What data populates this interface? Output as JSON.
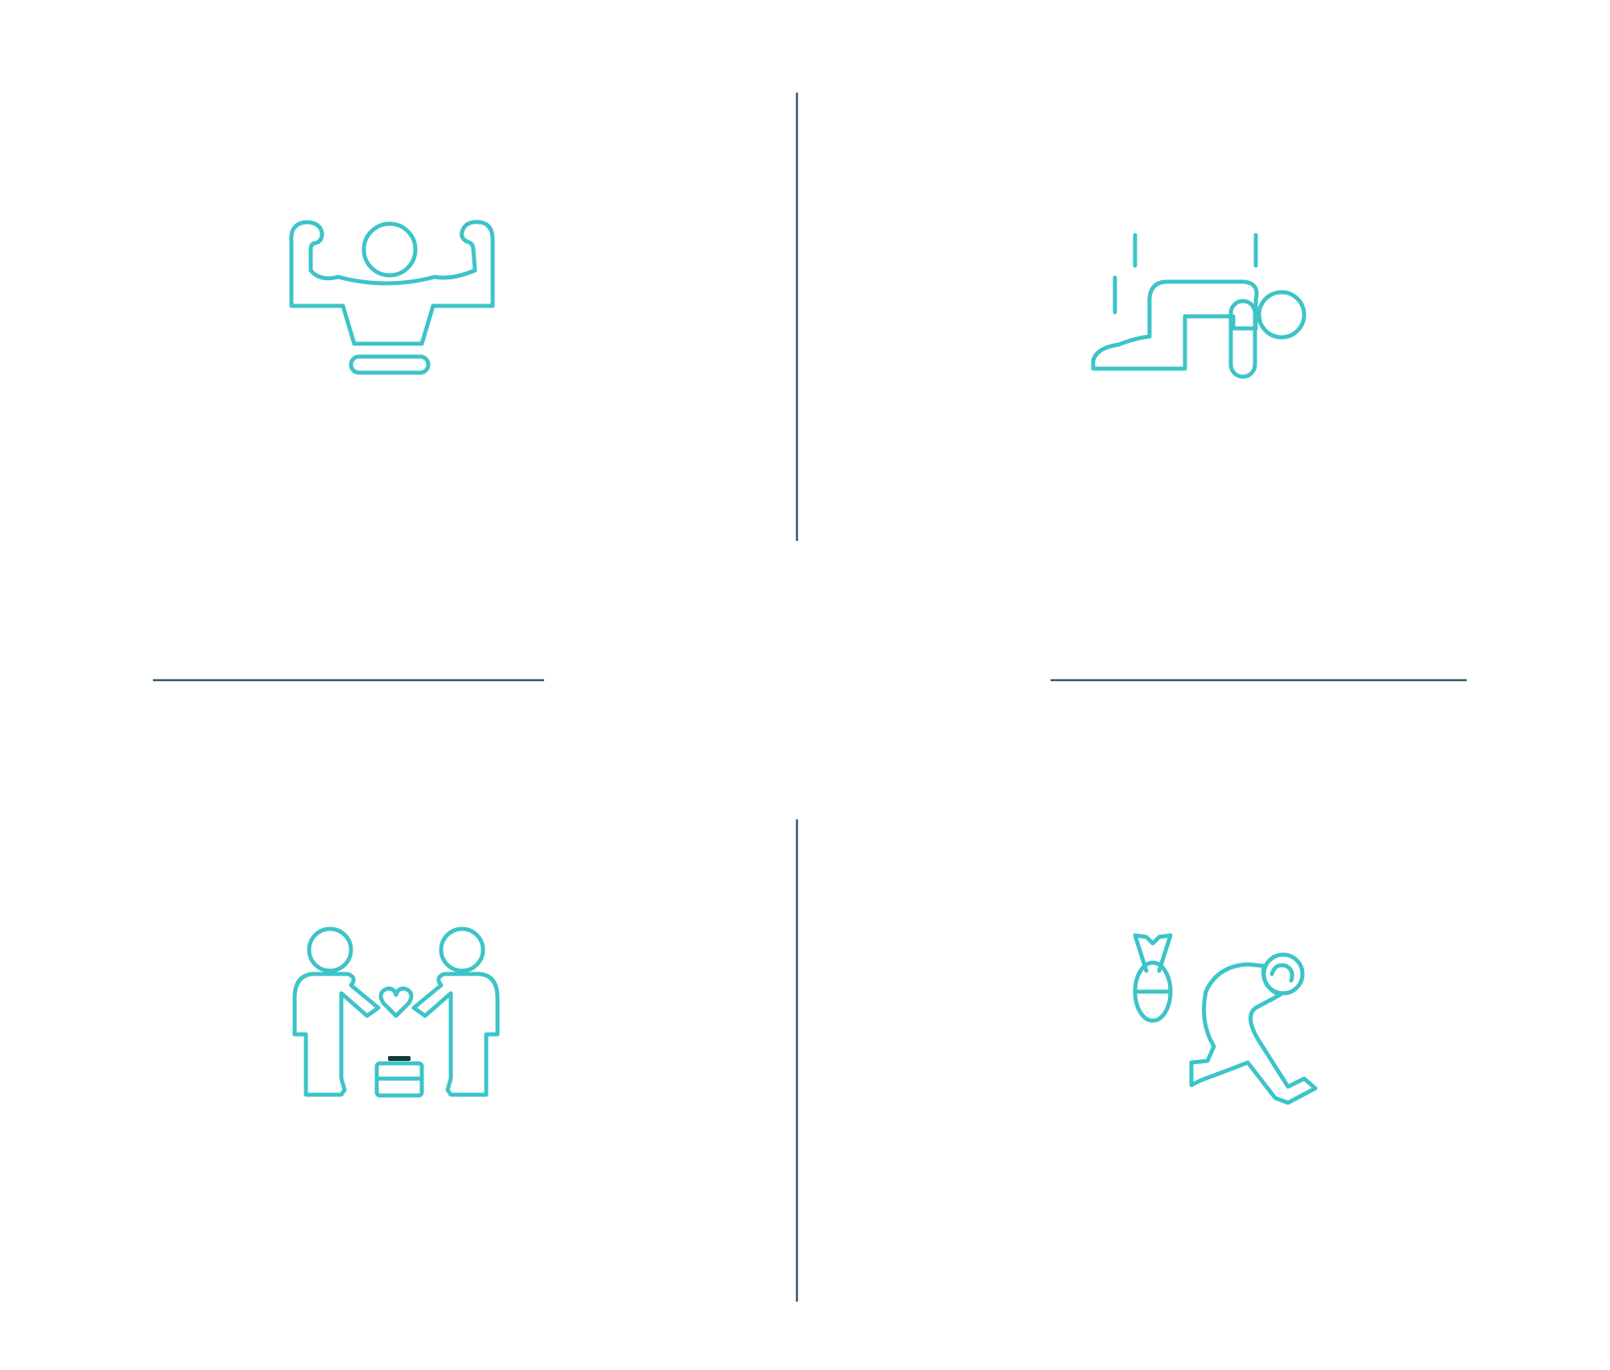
{
  "theme": {
    "icon_color": "#3cc4c8",
    "divider_color": "#2e5a66",
    "background": "#ffffff"
  },
  "quadrants": [
    {
      "position": "top-left",
      "icon": "strong-person-flexing-icon"
    },
    {
      "position": "top-right",
      "icon": "person-crawling-exhausted-icon"
    },
    {
      "position": "bottom-left",
      "icon": "two-people-heart-briefcase-icon"
    },
    {
      "position": "bottom-right",
      "icon": "person-stressed-bomb-icon"
    }
  ]
}
